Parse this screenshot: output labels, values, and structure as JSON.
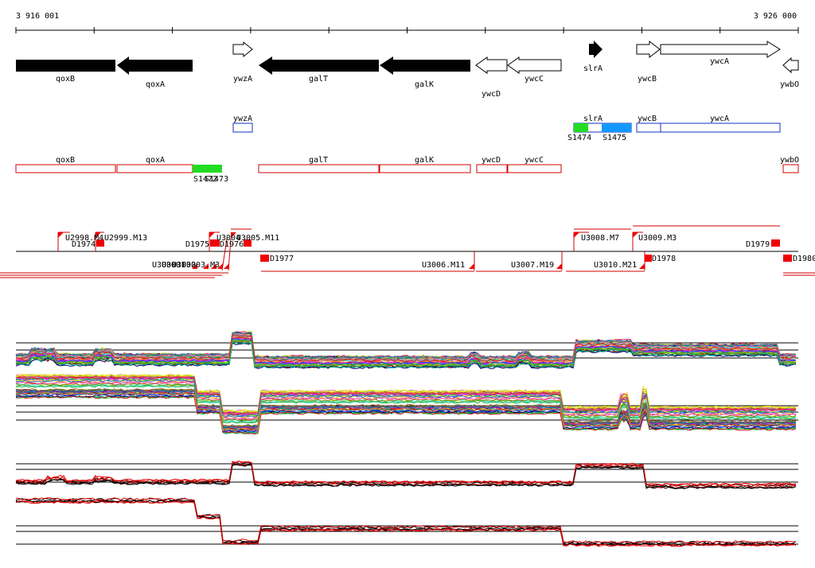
{
  "ruler": {
    "start_label": "3 916 001",
    "end_label": "3 926 000"
  },
  "colors": {
    "forward_outline": "#000000",
    "reverse_fill": "#000000",
    "feature_outline_red": "#d00000",
    "feature_outline_blue": "#1030c0",
    "marker_red": "#ee0000",
    "highlight_green": "#22dd22",
    "highlight_blue": "#1199ff"
  },
  "genes": [
    {
      "label": "qoxB",
      "strand": "reverse",
      "filled": true
    },
    {
      "label": "qoxA",
      "strand": "reverse",
      "filled": true
    },
    {
      "label": "ywzA",
      "strand": "forward",
      "filled": false
    },
    {
      "label": "galT",
      "strand": "reverse",
      "filled": true
    },
    {
      "label": "galK",
      "strand": "reverse",
      "filled": true
    },
    {
      "label": "ywcD",
      "strand": "reverse",
      "filled": false
    },
    {
      "label": "ywcC",
      "strand": "reverse",
      "filled": false
    },
    {
      "label": "slrA",
      "strand": "forward",
      "filled": true
    },
    {
      "label": "ywcB",
      "strand": "forward",
      "filled": false
    },
    {
      "label": "ywcA",
      "strand": "forward",
      "filled": false
    },
    {
      "label": "ywbO",
      "strand": "reverse",
      "filled": false
    }
  ],
  "forward_features": [
    {
      "label": "ywzA"
    },
    {
      "label": "slrA"
    },
    {
      "label": "ywcB"
    },
    {
      "label": "ywcA"
    }
  ],
  "forward_markers": [
    {
      "label": "S1474"
    },
    {
      "label": "S1475"
    }
  ],
  "reverse_features": [
    {
      "label": "qoxB"
    },
    {
      "label": "qoxA"
    },
    {
      "label": "galT"
    },
    {
      "label": "galK"
    },
    {
      "label": "ywcD"
    },
    {
      "label": "ywcC"
    },
    {
      "label": "ywbO"
    }
  ],
  "reverse_markers": [
    {
      "label": "S1472"
    },
    {
      "label": "S1473"
    }
  ],
  "upper_annotations": [
    {
      "label": "U2998.M4"
    },
    {
      "label": "U2999.M13"
    },
    {
      "label": "D1974"
    },
    {
      "label": "D1975"
    },
    {
      "label": "U3004"
    },
    {
      "label": "U3005.M11"
    },
    {
      "label": "D1976"
    },
    {
      "label": "U3008.M7"
    },
    {
      "label": "U3009.M3"
    },
    {
      "label": "D1979"
    }
  ],
  "lower_annotations": [
    {
      "label": "U3000"
    },
    {
      "label": "U3001"
    },
    {
      "label": "U3002"
    },
    {
      "label": "U3003.M3"
    },
    {
      "label": "D1977"
    },
    {
      "label": "U3006.M11"
    },
    {
      "label": "U3007.M19"
    },
    {
      "label": "U3010.M21"
    },
    {
      "label": "D1978"
    },
    {
      "label": "D1980"
    }
  ],
  "expression_panels": [
    {
      "name": "forward-strand-tiling",
      "style": "multicolor"
    },
    {
      "name": "reverse-strand-tiling",
      "style": "multicolor"
    },
    {
      "name": "forward-strand-summary",
      "style": "black-red"
    },
    {
      "name": "reverse-strand-summary",
      "style": "black-red"
    }
  ]
}
